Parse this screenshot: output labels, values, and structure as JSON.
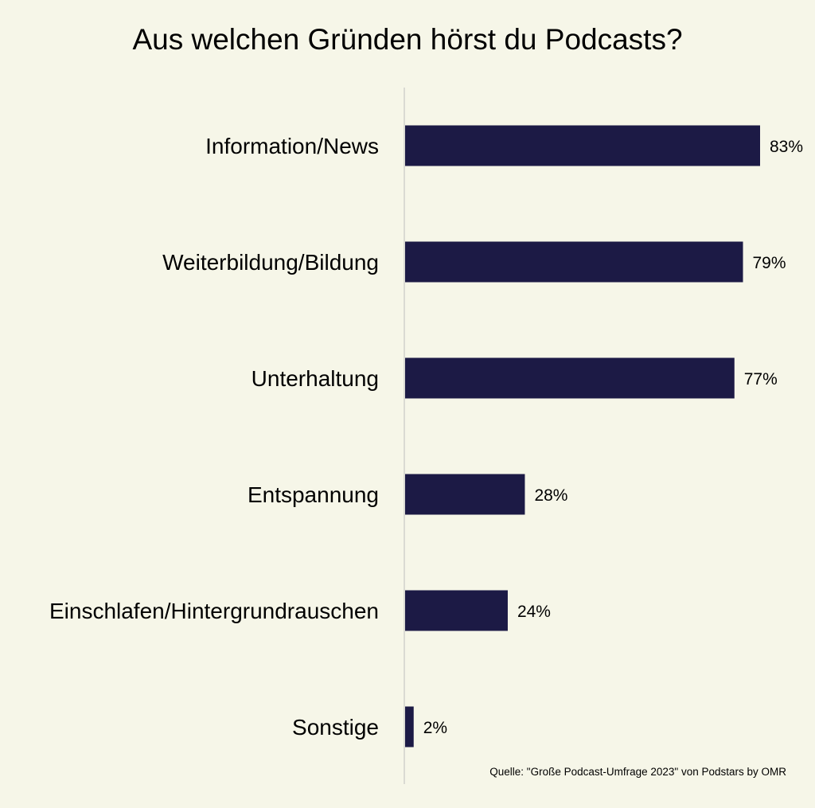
{
  "chart_data": {
    "type": "bar",
    "orientation": "horizontal",
    "title": "Aus welchen Gründen hörst du Podcasts?",
    "categories": [
      "Information/News",
      "Weiterbildung/Bildung",
      "Unterhaltung",
      "Entspannung",
      "Einschlafen/Hintergrundrauschen",
      "Sonstige"
    ],
    "values": [
      83,
      79,
      77,
      28,
      24,
      2
    ],
    "value_labels": [
      "83%",
      "79%",
      "77%",
      "28%",
      "24%",
      "2%"
    ],
    "unit": "%",
    "xlim": [
      0,
      100
    ],
    "grid": false,
    "legend": "none",
    "source": "Quelle: \"Große Podcast-Umfrage 2023\" von Podstars by OMR"
  },
  "colors": {
    "background": "#f6f6e8",
    "bar": "#1c1a45",
    "axis": "#d0d0cc",
    "text": "#000000"
  }
}
